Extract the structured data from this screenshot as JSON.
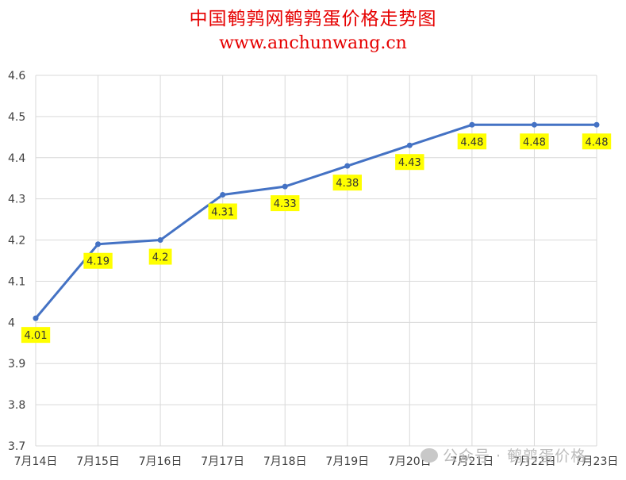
{
  "title": "中国鹌鹑网鹌鹑蛋价格走势图",
  "subtitle": "www.anchunwang.cn",
  "watermark": {
    "icon": "wechat-icon",
    "text": "公众号 · 鹌鹑蛋价格"
  },
  "colors": {
    "title": "#e60000",
    "line": "#4472c4",
    "label_bg": "#ffff00",
    "grid": "#d9d9d9"
  },
  "chart_data": {
    "type": "line",
    "title": "中国鹌鹑网鹌鹑蛋价格走势图",
    "categories": [
      "7月14日",
      "7月15日",
      "7月16日",
      "7月17日",
      "7月18日",
      "7月19日",
      "7月20日",
      "7月21日",
      "7月22日",
      "7月23日"
    ],
    "values": [
      4.01,
      4.19,
      4.2,
      4.31,
      4.33,
      4.38,
      4.43,
      4.48,
      4.48,
      4.48
    ],
    "data_labels": [
      "4.01",
      "4.19",
      "4.2",
      "4.31",
      "4.33",
      "4.38",
      "4.43",
      "4.48",
      "4.48",
      "4.48"
    ],
    "yticks": [
      "3.7",
      "3.8",
      "3.9",
      "4",
      "4.1",
      "4.2",
      "4.3",
      "4.4",
      "4.5",
      "4.6"
    ],
    "ylim": [
      3.7,
      4.6
    ],
    "xlabel": "",
    "ylabel": "",
    "grid": true,
    "legend": "none"
  }
}
